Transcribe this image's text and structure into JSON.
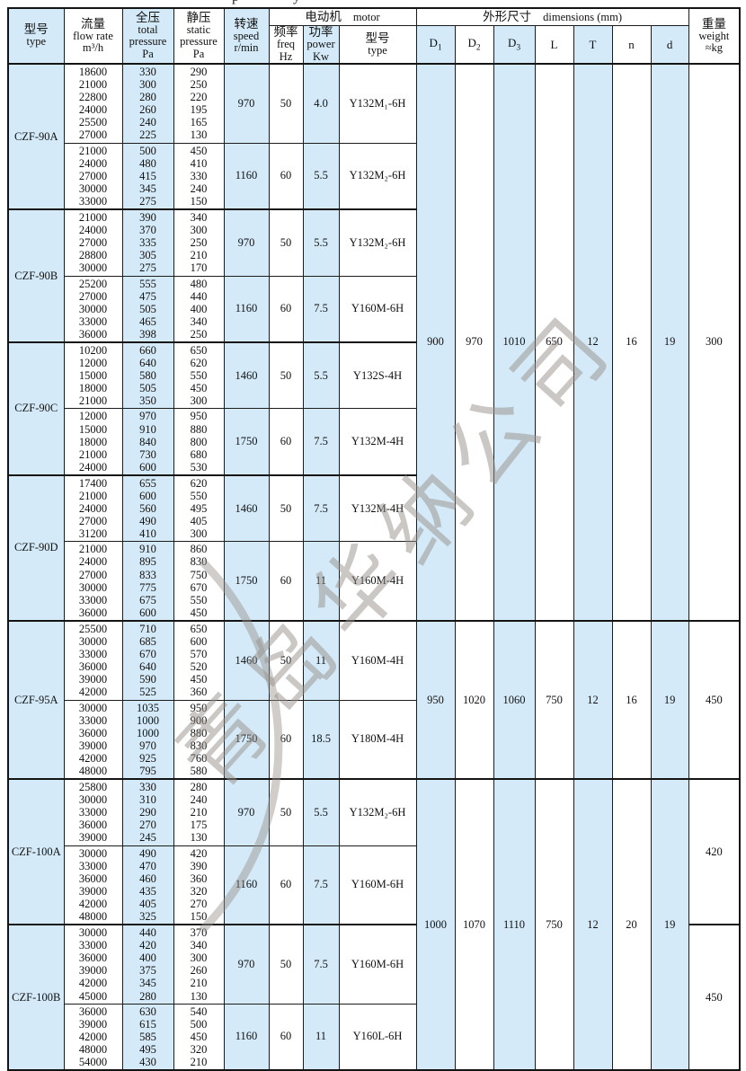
{
  "page": {
    "top_fragment": "p y"
  },
  "watermark": {
    "text": "青岛华纳公司",
    "color": "#96908a"
  },
  "header": {
    "type": {
      "zh": "型号",
      "en": "type"
    },
    "flow": {
      "zh": "流量",
      "en": "flow rate",
      "unit": "m³/h"
    },
    "total": {
      "zh": "全压",
      "en1": "total",
      "en2": "pressure",
      "unit": "Pa"
    },
    "static": {
      "zh": "静压",
      "en1": "static",
      "en2": "pressure",
      "unit": "Pa"
    },
    "speed": {
      "zh": "转速",
      "en": "speed",
      "unit": "r/min"
    },
    "motor_group": {
      "zh": "电动机",
      "en": "motor"
    },
    "freq": {
      "zh": "频率",
      "en": "freq",
      "unit": "Hz"
    },
    "power": {
      "zh": "功率",
      "en": "power",
      "unit": "Kw"
    },
    "motor_type": {
      "zh": "型号",
      "en": "type"
    },
    "dims_group": {
      "zh": "外形尺寸",
      "en": "dimensions (mm)"
    },
    "dim_cols": [
      {
        "key": "d1",
        "base": "D",
        "sub": "1"
      },
      {
        "key": "d2",
        "base": "D",
        "sub": "2"
      },
      {
        "key": "d3",
        "base": "D",
        "sub": "3"
      },
      {
        "key": "l",
        "base": "L"
      },
      {
        "key": "t",
        "base": "T"
      },
      {
        "key": "n",
        "base": "n"
      },
      {
        "key": "d",
        "base": "d"
      }
    ],
    "weight": {
      "zh": "重量",
      "en": "weight",
      "unit": "≈kg"
    }
  },
  "groups": [
    {
      "type": "CZF-90A",
      "blocks": [
        {
          "flow": [
            "18600",
            "21000",
            "22800",
            "24000",
            "25500",
            "27000"
          ],
          "total": [
            "330",
            "300",
            "280",
            "260",
            "240",
            "225"
          ],
          "static": [
            "290",
            "250",
            "220",
            "195",
            "165",
            "130"
          ],
          "speed": "970",
          "freq": "50",
          "power": "4.0",
          "motor": "Y132M₁-6H"
        },
        {
          "flow": [
            "21000",
            "24000",
            "27000",
            "30000",
            "33000"
          ],
          "total": [
            "500",
            "480",
            "415",
            "345",
            "275"
          ],
          "static": [
            "450",
            "410",
            "330",
            "240",
            "150"
          ],
          "speed": "1160",
          "freq": "60",
          "power": "5.5",
          "motor": "Y132M₂-6H"
        }
      ]
    },
    {
      "type": "CZF-90B",
      "blocks": [
        {
          "flow": [
            "21000",
            "24000",
            "27000",
            "28800",
            "30000"
          ],
          "total": [
            "390",
            "370",
            "335",
            "305",
            "275"
          ],
          "static": [
            "340",
            "300",
            "250",
            "210",
            "170"
          ],
          "speed": "970",
          "freq": "50",
          "power": "5.5",
          "motor": "Y132M₂-6H"
        },
        {
          "flow": [
            "25200",
            "27000",
            "30000",
            "33000",
            "36000"
          ],
          "total": [
            "555",
            "475",
            "505",
            "465",
            "398"
          ],
          "static": [
            "480",
            "440",
            "400",
            "340",
            "250"
          ],
          "speed": "1160",
          "freq": "60",
          "power": "7.5",
          "motor": "Y160M-6H"
        }
      ]
    },
    {
      "type": "CZF-90C",
      "blocks": [
        {
          "flow": [
            "10200",
            "12000",
            "15000",
            "18000",
            "21000"
          ],
          "total": [
            "660",
            "640",
            "580",
            "505",
            "350"
          ],
          "static": [
            "650",
            "620",
            "550",
            "450",
            "300"
          ],
          "speed": "1460",
          "freq": "50",
          "power": "5.5",
          "motor": "Y132S-4H"
        },
        {
          "flow": [
            "12000",
            "15000",
            "18000",
            "21000",
            "24000"
          ],
          "total": [
            "970",
            "910",
            "840",
            "730",
            "600"
          ],
          "static": [
            "950",
            "880",
            "800",
            "680",
            "530"
          ],
          "speed": "1750",
          "freq": "60",
          "power": "7.5",
          "motor": "Y132M-4H"
        }
      ]
    },
    {
      "type": "CZF-90D",
      "blocks": [
        {
          "flow": [
            "17400",
            "21000",
            "24000",
            "27000",
            "31200"
          ],
          "total": [
            "655",
            "600",
            "560",
            "490",
            "410"
          ],
          "static": [
            "620",
            "550",
            "495",
            "405",
            "300"
          ],
          "speed": "1460",
          "freq": "50",
          "power": "7.5",
          "motor": "Y132M-4H"
        },
        {
          "flow": [
            "21000",
            "24000",
            "27000",
            "30000",
            "33000",
            "36000"
          ],
          "total": [
            "910",
            "895",
            "833",
            "775",
            "675",
            "600"
          ],
          "static": [
            "860",
            "830",
            "750",
            "670",
            "550",
            "450"
          ],
          "speed": "1750",
          "freq": "60",
          "power": "11",
          "motor": "Y160M-4H"
        }
      ]
    },
    {
      "type": "CZF-95A",
      "blocks": [
        {
          "flow": [
            "25500",
            "30000",
            "33000",
            "36000",
            "39000",
            "42000"
          ],
          "total": [
            "710",
            "685",
            "670",
            "640",
            "590",
            "525"
          ],
          "static": [
            "650",
            "600",
            "570",
            "520",
            "450",
            "360"
          ],
          "speed": "1460",
          "freq": "50",
          "power": "11",
          "motor": "Y160M-4H"
        },
        {
          "flow": [
            "30000",
            "33000",
            "36000",
            "39000",
            "42000",
            "48000"
          ],
          "total": [
            "1035",
            "1000",
            "1000",
            "970",
            "925",
            "795"
          ],
          "static": [
            "950",
            "900",
            "880",
            "830",
            "760",
            "580"
          ],
          "speed": "1750",
          "freq": "60",
          "power": "18.5",
          "motor": "Y180M-4H"
        }
      ]
    },
    {
      "type": "CZF-100A",
      "blocks": [
        {
          "flow": [
            "25800",
            "30000",
            "33000",
            "36000",
            "39000"
          ],
          "total": [
            "330",
            "310",
            "290",
            "270",
            "245"
          ],
          "static": [
            "280",
            "240",
            "210",
            "175",
            "130"
          ],
          "speed": "970",
          "freq": "50",
          "power": "5.5",
          "motor": "Y132M₂-6H"
        },
        {
          "flow": [
            "30000",
            "33000",
            "36000",
            "39000",
            "42000",
            "48000"
          ],
          "total": [
            "490",
            "470",
            "460",
            "435",
            "405",
            "325"
          ],
          "static": [
            "420",
            "390",
            "360",
            "320",
            "270",
            "150"
          ],
          "speed": "1160",
          "freq": "60",
          "power": "7.5",
          "motor": "Y160M-6H"
        }
      ]
    },
    {
      "type": "CZF-100B",
      "blocks": [
        {
          "flow": [
            "30000",
            "33000",
            "36000",
            "39000",
            "42000",
            "45000"
          ],
          "total": [
            "440",
            "420",
            "400",
            "375",
            "345",
            "280"
          ],
          "static": [
            "370",
            "340",
            "300",
            "260",
            "210",
            "130"
          ],
          "speed": "970",
          "freq": "50",
          "power": "7.5",
          "motor": "Y160M-6H"
        },
        {
          "flow": [
            "36000",
            "39000",
            "42000",
            "48000",
            "54000"
          ],
          "total": [
            "630",
            "615",
            "585",
            "495",
            "430"
          ],
          "static": [
            "540",
            "500",
            "450",
            "320",
            "210"
          ],
          "speed": "1160",
          "freq": "60",
          "power": "11",
          "motor": "Y160L-6H"
        }
      ]
    }
  ],
  "dim_spans": [
    {
      "start": 0,
      "rows": 8,
      "values": [
        "900",
        "970",
        "1010",
        "650",
        "12",
        "16",
        "19"
      ]
    },
    {
      "start": 4,
      "rows": 2,
      "values": [
        "950",
        "1020",
        "1060",
        "750",
        "12",
        "16",
        "19"
      ]
    },
    {
      "start": 5,
      "rows": 4,
      "values": [
        "1000",
        "1070",
        "1110",
        "750",
        "12",
        "20",
        "19"
      ]
    }
  ],
  "weight_spans": [
    {
      "start": 0,
      "rows": 8,
      "value": "300"
    },
    {
      "start": 4,
      "rows": 2,
      "value": "450"
    },
    {
      "start": 5,
      "rows": 2,
      "value": "420"
    },
    {
      "start": 6,
      "rows": 2,
      "value": "450"
    }
  ]
}
